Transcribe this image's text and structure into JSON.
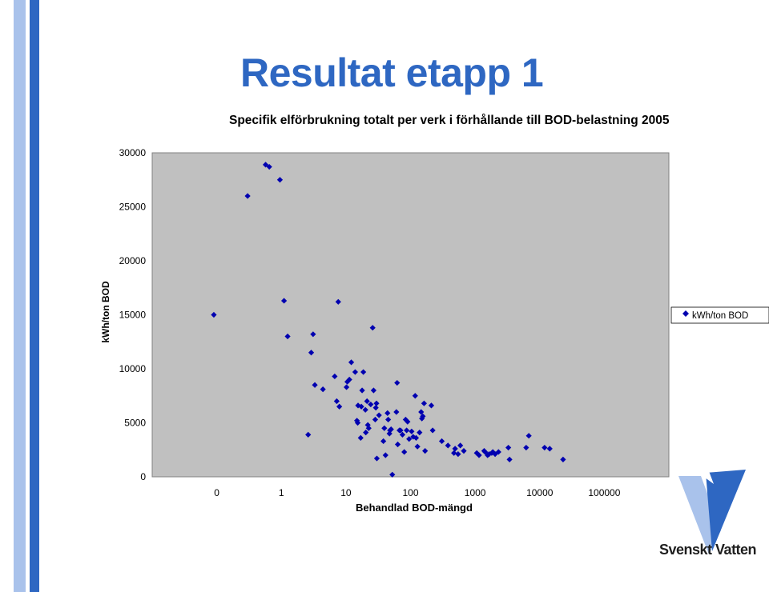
{
  "header": {
    "title": "Resultat etapp 1"
  },
  "brand": {
    "logo_text": "Svenskt Vatten",
    "colors": {
      "dark_blue": "#2e67c2",
      "light_blue": "#a9c2eb",
      "marker": "#0000b0",
      "plot_bg": "#c0c0c0"
    }
  },
  "chart_data": {
    "type": "scatter",
    "title": "Specifik elförbrukning totalt per verk i förhållande till BOD-belastning 2005",
    "xlabel": "Behandlad BOD-mängd",
    "ylabel": "kWh/ton BOD",
    "x_scale": "log",
    "xlim": [
      0.01,
      1000000
    ],
    "ylim": [
      0,
      30000
    ],
    "x_tick_labels": [
      "0",
      "1",
      "10",
      "100",
      "1000",
      "10000",
      "100000"
    ],
    "y_tick_labels": [
      "0",
      "5000",
      "10000",
      "15000",
      "20000",
      "25000",
      "30000"
    ],
    "grid": false,
    "legend": {
      "placement": "right",
      "entries": [
        "kWh/ton BOD"
      ]
    },
    "series": [
      {
        "name": "kWh/ton BOD",
        "points": [
          [
            0.09,
            15000
          ],
          [
            0.3,
            26000
          ],
          [
            0.57,
            28900
          ],
          [
            0.65,
            28700
          ],
          [
            0.95,
            27500
          ],
          [
            1.1,
            16300
          ],
          [
            1.25,
            13000
          ],
          [
            2.6,
            3900
          ],
          [
            2.9,
            11500
          ],
          [
            3.1,
            13200
          ],
          [
            3.3,
            8500
          ],
          [
            4.4,
            8100
          ],
          [
            6.7,
            9300
          ],
          [
            7.2,
            7000
          ],
          [
            7.6,
            16200
          ],
          [
            7.9,
            6500
          ],
          [
            10.2,
            8300
          ],
          [
            10.5,
            8800
          ],
          [
            11.3,
            9000
          ],
          [
            12.1,
            10600
          ],
          [
            13.9,
            9700
          ],
          [
            14.8,
            5200
          ],
          [
            15.4,
            6600
          ],
          [
            15.2,
            5000
          ],
          [
            16.9,
            3600
          ],
          [
            17.3,
            6500
          ],
          [
            17.8,
            8000
          ],
          [
            18.6,
            9700
          ],
          [
            20.0,
            6200
          ],
          [
            20.3,
            4100
          ],
          [
            21.2,
            7000
          ],
          [
            21.8,
            4800
          ],
          [
            22.5,
            4500
          ],
          [
            24.2,
            6700
          ],
          [
            25.9,
            13800
          ],
          [
            26.8,
            8000
          ],
          [
            28.4,
            5300
          ],
          [
            29.0,
            6400
          ],
          [
            29.7,
            6800
          ],
          [
            30.1,
            1700
          ],
          [
            32.5,
            5700
          ],
          [
            38.0,
            3300
          ],
          [
            39.3,
            4500
          ],
          [
            41.0,
            2000
          ],
          [
            44.0,
            5900
          ],
          [
            45.1,
            5300
          ],
          [
            47.2,
            4000
          ],
          [
            48.0,
            4300
          ],
          [
            50.0,
            4400
          ],
          [
            52.2,
            200
          ],
          [
            60.4,
            6000
          ],
          [
            62.0,
            8700
          ],
          [
            63.4,
            3000
          ],
          [
            67.3,
            4300
          ],
          [
            70.0,
            4300
          ],
          [
            75.0,
            3900
          ],
          [
            80.0,
            2300
          ],
          [
            84.0,
            5300
          ],
          [
            87.0,
            4300
          ],
          [
            90.0,
            5100
          ],
          [
            95.0,
            3500
          ],
          [
            104.0,
            4200
          ],
          [
            110.0,
            3700
          ],
          [
            118.0,
            7500
          ],
          [
            122.0,
            3600
          ],
          [
            128.0,
            2800
          ],
          [
            138.0,
            4100
          ],
          [
            146.0,
            6000
          ],
          [
            150.0,
            5400
          ],
          [
            155.0,
            5600
          ],
          [
            162.0,
            6800
          ],
          [
            168.0,
            2400
          ],
          [
            210.0,
            6600
          ],
          [
            220.0,
            4300
          ],
          [
            305.0,
            3300
          ],
          [
            380.0,
            2900
          ],
          [
            470.0,
            2200
          ],
          [
            490.0,
            2600
          ],
          [
            545.0,
            2100
          ],
          [
            590.0,
            2900
          ],
          [
            668.0,
            2400
          ],
          [
            1060.0,
            2200
          ],
          [
            1150.0,
            2000
          ],
          [
            1380.0,
            2400
          ],
          [
            1430.0,
            2300
          ],
          [
            1560.0,
            2000
          ],
          [
            1650.0,
            2100
          ],
          [
            1810.0,
            2200
          ],
          [
            1880.0,
            2300
          ],
          [
            2040.0,
            2100
          ],
          [
            2300.0,
            2300
          ],
          [
            3270.0,
            2700
          ],
          [
            3410.0,
            1600
          ],
          [
            6170.0,
            2700
          ],
          [
            6780.0,
            3800
          ],
          [
            11900.0,
            2700
          ],
          [
            14300.0,
            2600
          ],
          [
            23000.0,
            1600
          ]
        ]
      }
    ]
  }
}
